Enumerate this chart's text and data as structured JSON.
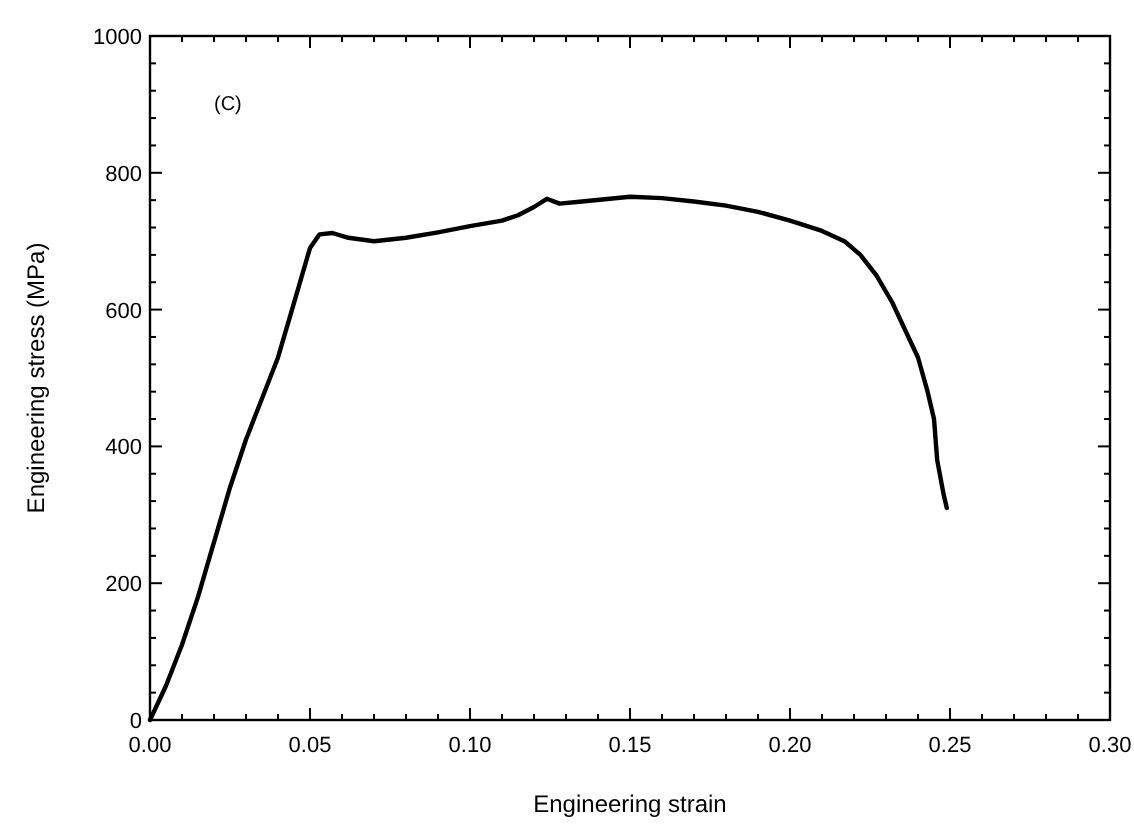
{
  "chart_data": {
    "type": "line",
    "xlabel": "Engineering strain",
    "ylabel": "Engineering stress (MPa)",
    "annotations": [
      "(C)"
    ],
    "xlim": [
      0,
      0.3
    ],
    "ylim": [
      0,
      1000
    ],
    "xticks": [
      {
        "value": 0,
        "label": "0.00"
      },
      {
        "value": 0.01,
        "label": null
      },
      {
        "value": 0.02,
        "label": null
      },
      {
        "value": 0.03,
        "label": null
      },
      {
        "value": 0.04,
        "label": null
      },
      {
        "value": 0.05,
        "label": "0.05"
      },
      {
        "value": 0.06,
        "label": null
      },
      {
        "value": 0.07,
        "label": null
      },
      {
        "value": 0.08,
        "label": null
      },
      {
        "value": 0.09,
        "label": null
      },
      {
        "value": 0.1,
        "label": "0.10"
      },
      {
        "value": 0.11,
        "label": null
      },
      {
        "value": 0.12,
        "label": null
      },
      {
        "value": 0.13,
        "label": null
      },
      {
        "value": 0.14,
        "label": null
      },
      {
        "value": 0.15,
        "label": "0.15"
      },
      {
        "value": 0.16,
        "label": null
      },
      {
        "value": 0.17,
        "label": null
      },
      {
        "value": 0.18,
        "label": null
      },
      {
        "value": 0.19,
        "label": null
      },
      {
        "value": 0.2,
        "label": "0.20"
      },
      {
        "value": 0.21,
        "label": null
      },
      {
        "value": 0.22,
        "label": null
      },
      {
        "value": 0.23,
        "label": null
      },
      {
        "value": 0.24,
        "label": null
      },
      {
        "value": 0.25,
        "label": "0.25"
      },
      {
        "value": 0.26,
        "label": null
      },
      {
        "value": 0.27,
        "label": null
      },
      {
        "value": 0.28,
        "label": null
      },
      {
        "value": 0.29,
        "label": null
      },
      {
        "value": 0.3,
        "label": "0.30"
      }
    ],
    "yticks": [
      0,
      {
        "value": 40,
        "label": null
      },
      {
        "value": 80,
        "label": null
      },
      {
        "value": 120,
        "label": null
      },
      {
        "value": 160,
        "label": null
      },
      200,
      {
        "value": 240,
        "label": null
      },
      {
        "value": 280,
        "label": null
      },
      {
        "value": 320,
        "label": null
      },
      {
        "value": 360,
        "label": null
      },
      400,
      {
        "value": 440,
        "label": null
      },
      {
        "value": 480,
        "label": null
      },
      {
        "value": 520,
        "label": null
      },
      {
        "value": 560,
        "label": null
      },
      600,
      {
        "value": 640,
        "label": null
      },
      {
        "value": 680,
        "label": null
      },
      {
        "value": 720,
        "label": null
      },
      {
        "value": 760,
        "label": null
      },
      800,
      {
        "value": 840,
        "label": null
      },
      {
        "value": 880,
        "label": null
      },
      {
        "value": 920,
        "label": null
      },
      {
        "value": 960,
        "label": null
      },
      1000
    ],
    "grid": false,
    "marker": "none",
    "line_style": "solid",
    "series": [
      {
        "color": "#000000",
        "x": [
          0,
          0.005,
          0.01,
          0.015,
          0.02,
          0.025,
          0.03,
          0.035,
          0.04,
          0.045,
          0.05,
          0.053,
          0.057,
          0.062,
          0.07,
          0.08,
          0.09,
          0.1,
          0.11,
          0.115,
          0.12,
          0.124,
          0.128,
          0.135,
          0.15,
          0.16,
          0.17,
          0.18,
          0.19,
          0.2,
          0.21,
          0.217,
          0.222,
          0.227,
          0.232,
          0.237,
          0.24,
          0.243,
          0.245,
          0.246,
          0.248,
          0.249
        ],
        "values": [
          0,
          50,
          110,
          180,
          260,
          340,
          410,
          470,
          530,
          610,
          690,
          710,
          712,
          705,
          700,
          705,
          713,
          722,
          730,
          738,
          750,
          762,
          755,
          758,
          765,
          763,
          758,
          752,
          743,
          730,
          715,
          700,
          680,
          650,
          610,
          560,
          530,
          480,
          440,
          380,
          330,
          310
        ]
      }
    ]
  }
}
